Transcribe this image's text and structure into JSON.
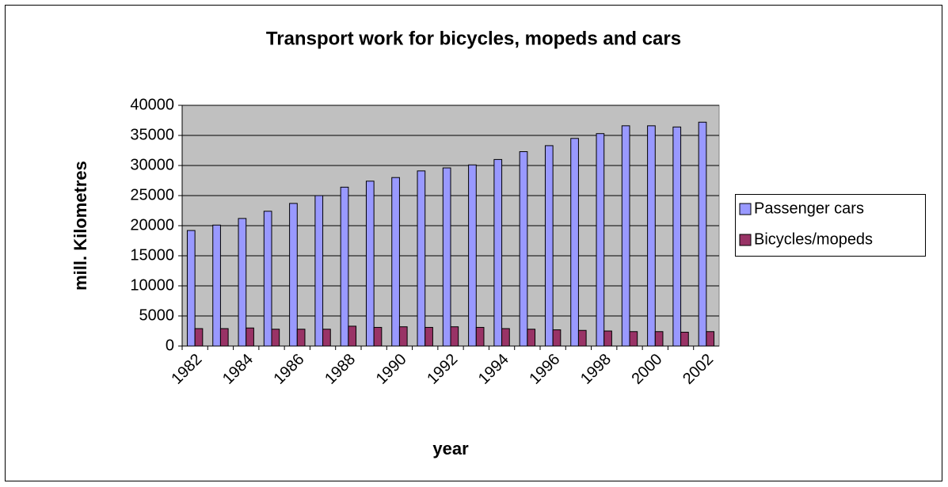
{
  "chart_data": {
    "type": "bar",
    "title": "Transport work for bicycles, mopeds and cars",
    "x_label": "year",
    "y_label": "mill. Kilometres",
    "categories": [
      "1982",
      null,
      "1984",
      null,
      "1986",
      null,
      "1988",
      null,
      "1990",
      null,
      "1992",
      null,
      "1994",
      null,
      "1996",
      null,
      "1998",
      null,
      "2000",
      null,
      "2002"
    ],
    "series": [
      {
        "name": "Passenger cars",
        "color": "#9999ff",
        "values": [
          19200,
          20100,
          21200,
          22400,
          23700,
          25000,
          26400,
          27400,
          28000,
          29100,
          29600,
          30100,
          31000,
          32300,
          33300,
          34500,
          35300,
          36600,
          36600,
          36400,
          37200
        ]
      },
      {
        "name": "Bicycles/mopeds",
        "color": "#993366",
        "values": [
          2900,
          2900,
          3000,
          2800,
          2800,
          2800,
          3300,
          3100,
          3200,
          3100,
          3200,
          3100,
          2900,
          2800,
          2700,
          2600,
          2500,
          2400,
          2400,
          2300,
          2400
        ]
      }
    ],
    "ylim": [
      0,
      40000
    ],
    "yticks": [
      0,
      5000,
      10000,
      15000,
      20000,
      25000,
      30000,
      35000,
      40000
    ],
    "grid": true,
    "legend": "right"
  }
}
